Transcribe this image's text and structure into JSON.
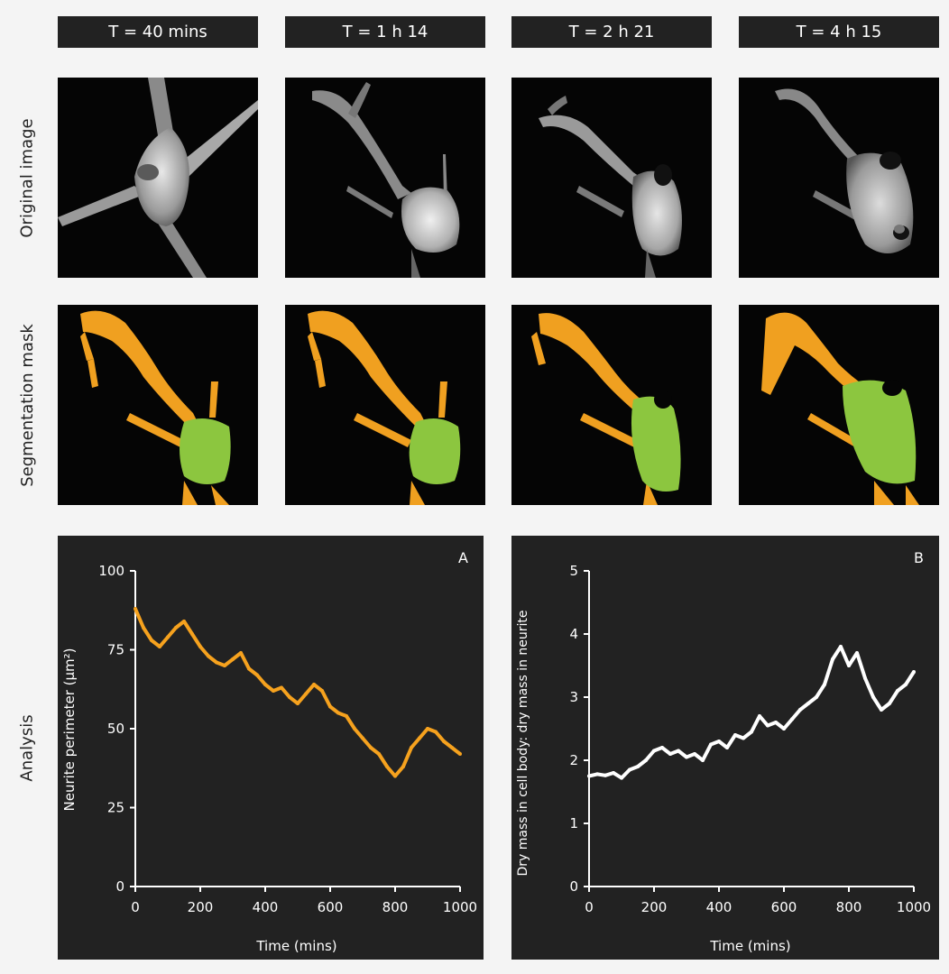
{
  "columns": [
    "T = 40 mins",
    "T = 1 h 14",
    "T = 2 h 21",
    "T = 4 h 15"
  ],
  "row_labels": {
    "original": "Original image",
    "mask": "Segmentation mask",
    "analysis": "Analysis"
  },
  "colors": {
    "neurite": "#f0a020",
    "cell_body": "#8cc63f",
    "plot_bg": "#222222",
    "series_a": "#f6a21e",
    "series_b": "#ffffff"
  },
  "chart_data": [
    {
      "type": "line",
      "panel_label": "A",
      "xlabel": "Time (mins)",
      "ylabel": "Neurite perimeter (μm²)",
      "xlim": [
        0,
        1000
      ],
      "ylim": [
        0,
        100
      ],
      "xticks": [
        0,
        200,
        400,
        600,
        800,
        1000
      ],
      "yticks": [
        0,
        25,
        50,
        75,
        100
      ],
      "grid": false,
      "series": [
        {
          "x": [
            0,
            25,
            50,
            75,
            100,
            125,
            150,
            175,
            200,
            225,
            250,
            275,
            300,
            325,
            350,
            375,
            400,
            425,
            450,
            475,
            500,
            525,
            550,
            575,
            600,
            625,
            650,
            675,
            700,
            725,
            750,
            775,
            800,
            825,
            850,
            875,
            900,
            925,
            950,
            975,
            1000
          ],
          "values": [
            88,
            82,
            78,
            76,
            79,
            82,
            84,
            80,
            76,
            73,
            71,
            70,
            72,
            74,
            69,
            67,
            64,
            62,
            63,
            60,
            58,
            61,
            64,
            62,
            57,
            55,
            54,
            50,
            47,
            44,
            42,
            38,
            35,
            38,
            44,
            47,
            50,
            49,
            46,
            44,
            42
          ]
        }
      ]
    },
    {
      "type": "line",
      "panel_label": "B",
      "xlabel": "Time (mins)",
      "ylabel": "Dry mass in cell body: dry mass in neurite",
      "xlim": [
        0,
        1000
      ],
      "ylim": [
        0,
        5
      ],
      "xticks": [
        0,
        200,
        400,
        600,
        800,
        1000
      ],
      "yticks": [
        0,
        1,
        2,
        3,
        4,
        5
      ],
      "grid": false,
      "series": [
        {
          "x": [
            0,
            25,
            50,
            75,
            100,
            125,
            150,
            175,
            200,
            225,
            250,
            275,
            300,
            325,
            350,
            375,
            400,
            425,
            450,
            475,
            500,
            525,
            550,
            575,
            600,
            625,
            650,
            675,
            700,
            725,
            750,
            775,
            800,
            825,
            850,
            875,
            900,
            925,
            950,
            975,
            1000
          ],
          "values": [
            1.75,
            1.78,
            1.76,
            1.8,
            1.72,
            1.85,
            1.9,
            2.0,
            2.15,
            2.2,
            2.1,
            2.15,
            2.05,
            2.1,
            2.0,
            2.25,
            2.3,
            2.2,
            2.4,
            2.35,
            2.45,
            2.7,
            2.55,
            2.6,
            2.5,
            2.65,
            2.8,
            2.9,
            3.0,
            3.2,
            3.6,
            3.8,
            3.5,
            3.7,
            3.3,
            3.0,
            2.8,
            2.9,
            3.1,
            3.2,
            3.4
          ]
        }
      ]
    }
  ]
}
